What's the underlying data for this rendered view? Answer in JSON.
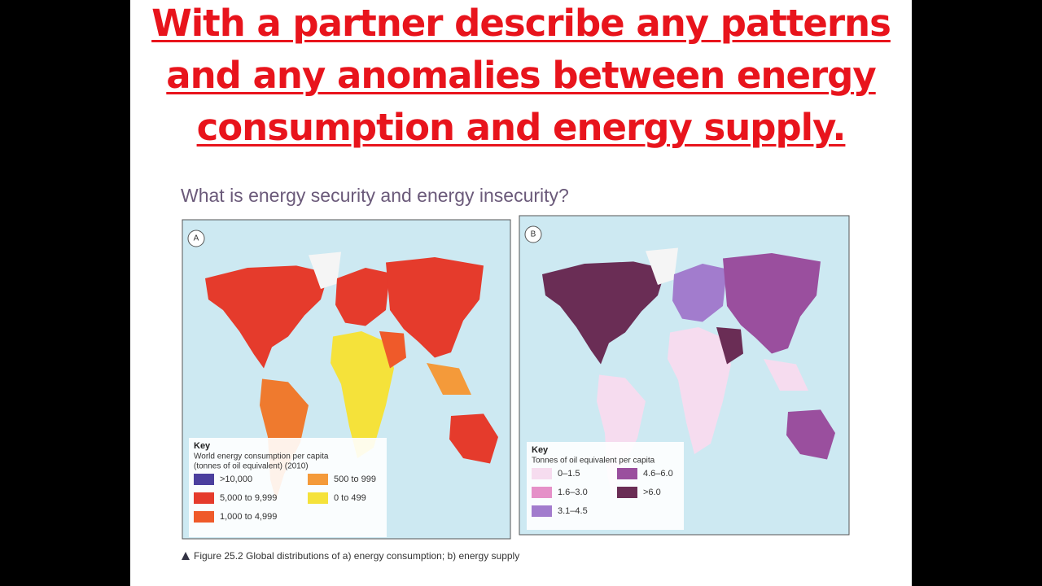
{
  "title_lines": [
    "With a partner describe any patterns",
    "and any anomalies between energy",
    "consumption and energy supply."
  ],
  "subtitle": "What is energy security and energy insecurity?",
  "maps": [
    {
      "label": "A",
      "key": {
        "heading": "Key",
        "description": [
          "World energy consumption per capita",
          "(tonnes of oil equivalent) (2010)"
        ],
        "items": [
          {
            "label": ">10,000",
            "color": "#4b3f9e"
          },
          {
            "label": "5,000 to 9,999",
            "color": "#e53b2c"
          },
          {
            "label": "1,000 to 4,999",
            "color": "#ef5a2a"
          },
          {
            "label": "500 to 999",
            "color": "#f49a3a"
          },
          {
            "label": "0 to 499",
            "color": "#f5e23a"
          }
        ]
      }
    },
    {
      "label": "B",
      "key": {
        "heading": "Key",
        "description": [
          "Tonnes of oil equivalent per capita"
        ],
        "items": [
          {
            "label": "0–1.5",
            "color": "#f6dcef"
          },
          {
            "label": "1.6–3.0",
            "color": "#e590c8"
          },
          {
            "label": "3.1–4.5",
            "color": "#a27ccd"
          },
          {
            "label": "4.6–6.0",
            "color": "#9a4f9e"
          },
          {
            "label": ">6.0",
            "color": "#6a2d55"
          }
        ]
      }
    }
  ],
  "caption": "Figure 25.2 Global distributions of a) energy consumption; b) energy supply"
}
